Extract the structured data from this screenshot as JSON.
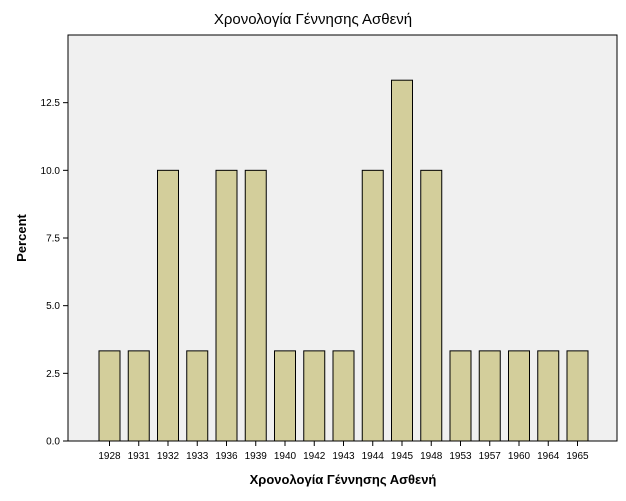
{
  "chart_data": {
    "type": "bar",
    "title": "Χρονολογία Γέννησης Ασθενή",
    "xlabel": "Χρονολογία Γέννησης Ασθενή",
    "ylabel": "Percent",
    "categories": [
      "1928",
      "1931",
      "1932",
      "1933",
      "1936",
      "1939",
      "1940",
      "1942",
      "1943",
      "1944",
      "1945",
      "1948",
      "1953",
      "1957",
      "1960",
      "1964",
      "1965"
    ],
    "values": [
      3.33,
      3.33,
      10.0,
      3.33,
      10.0,
      10.0,
      3.33,
      3.33,
      3.33,
      10.0,
      13.33,
      10.0,
      3.33,
      3.33,
      3.33,
      3.33,
      3.33
    ],
    "ylim": [
      0,
      15
    ],
    "yticks": [
      "0.0",
      "2.5",
      "5.0",
      "7.5",
      "10.0",
      "12.5"
    ],
    "ytick_values": [
      0,
      2.5,
      5,
      7.5,
      10,
      12.5
    ],
    "grid": false,
    "legend": "none",
    "colors": {
      "bar_fill": "#d3ce9b",
      "bar_stroke": "#000000",
      "plot_background": "#f0f0f0"
    }
  }
}
